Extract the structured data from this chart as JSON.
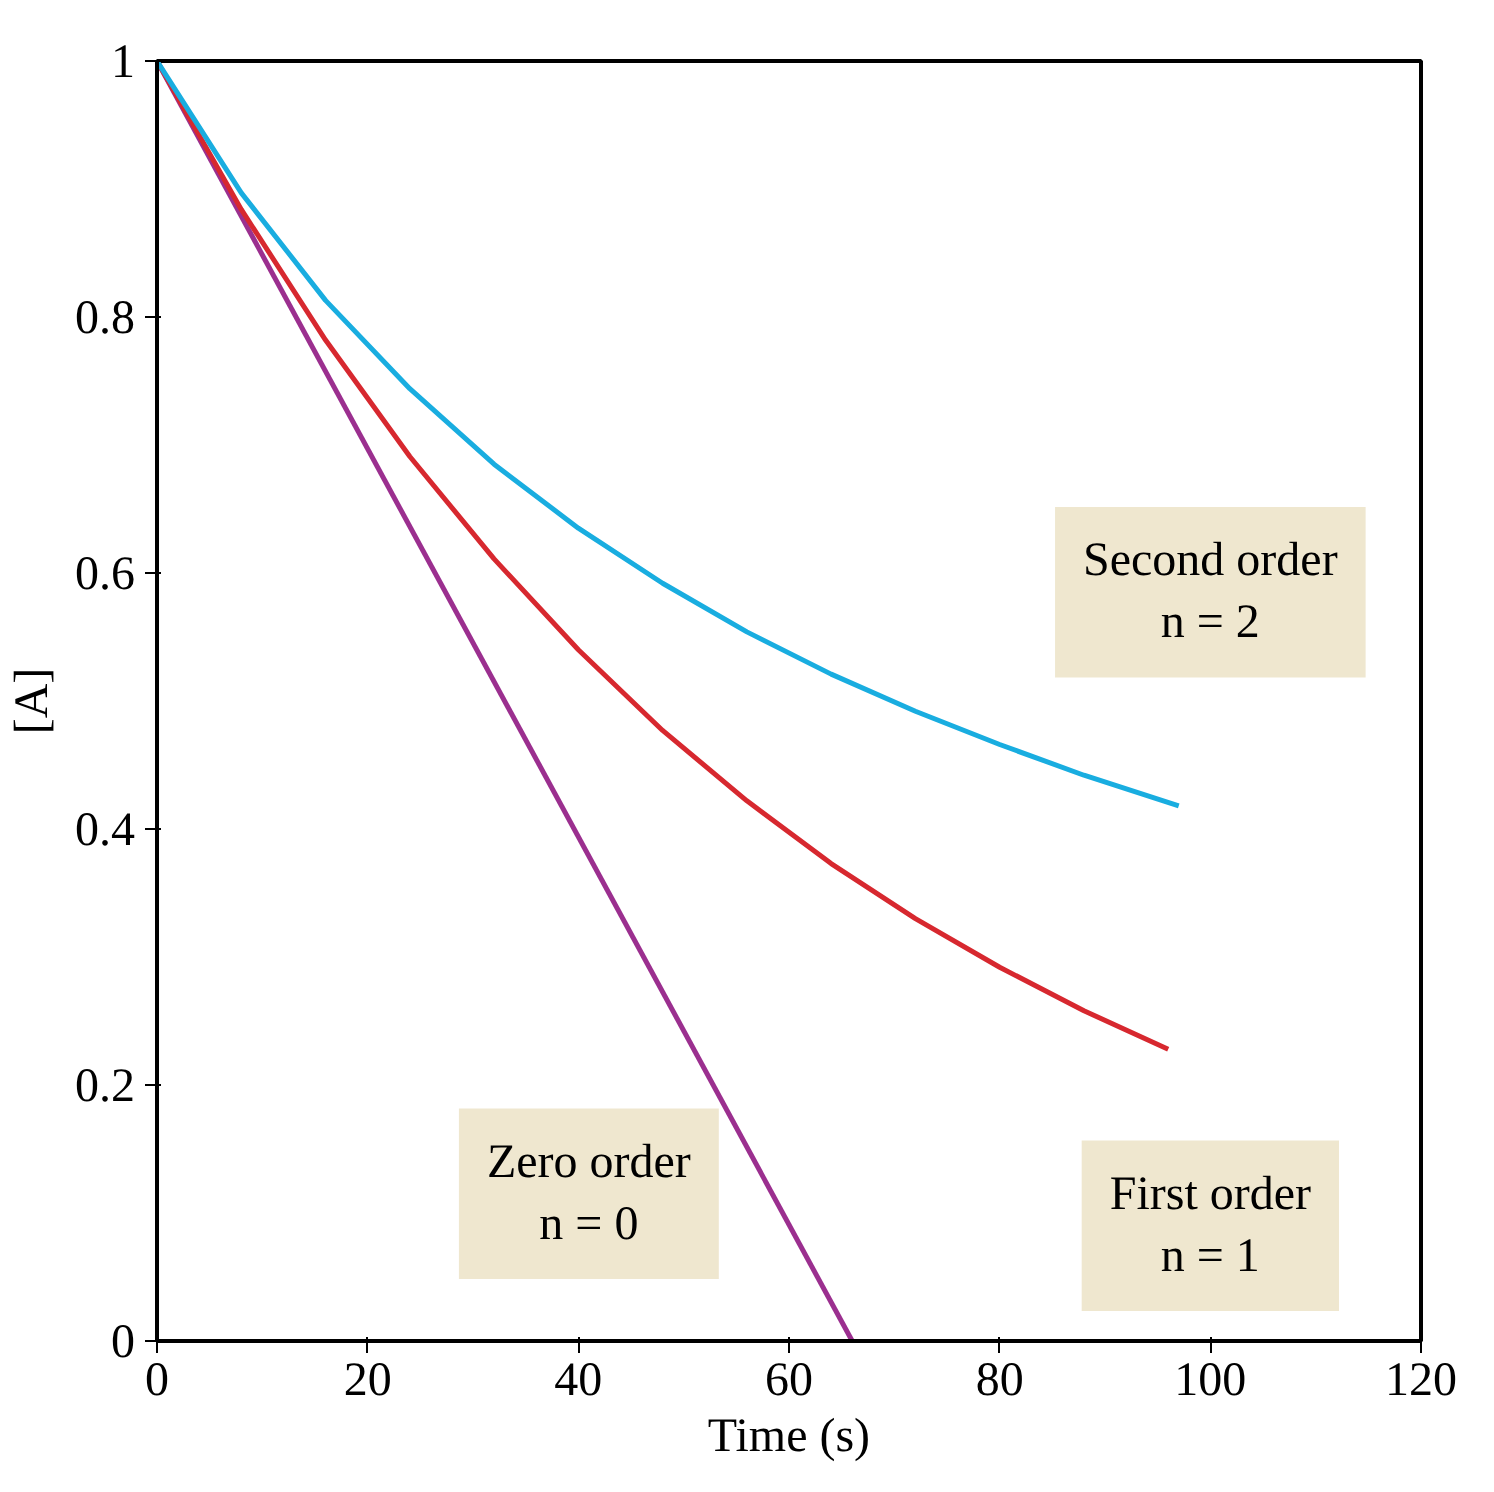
{
  "chart_data": {
    "type": "line",
    "xlabel": "Time (s)",
    "ylabel": "[A]",
    "xlim": [
      0,
      120
    ],
    "ylim": [
      0,
      1
    ],
    "xticks": [
      0,
      20,
      40,
      60,
      80,
      100,
      120
    ],
    "yticks": [
      0,
      0.2,
      0.4,
      0.6,
      0.8,
      1
    ],
    "grid": false,
    "legend": false,
    "series": [
      {
        "name": "Zero order\nn = 0",
        "color": "#9b2f8f",
        "x": [
          0,
          66
        ],
        "values": [
          1,
          0
        ]
      },
      {
        "name": "First order\nn = 1",
        "color": "#d7282f",
        "x": [
          0,
          8,
          16,
          24,
          32,
          40,
          48,
          56,
          64,
          72,
          80,
          88,
          96
        ],
        "values": [
          1,
          0.884,
          0.782,
          0.691,
          0.611,
          0.54,
          0.477,
          0.422,
          0.373,
          0.33,
          0.292,
          0.258,
          0.228
        ]
      },
      {
        "name": "Second order\nn = 2",
        "color": "#19ade0",
        "x": [
          0,
          8,
          16,
          24,
          32,
          40,
          48,
          56,
          64,
          72,
          80,
          88,
          97
        ],
        "values": [
          1,
          0.897,
          0.813,
          0.744,
          0.685,
          0.635,
          0.592,
          0.554,
          0.521,
          0.492,
          0.466,
          0.442,
          0.418
        ]
      }
    ]
  }
}
